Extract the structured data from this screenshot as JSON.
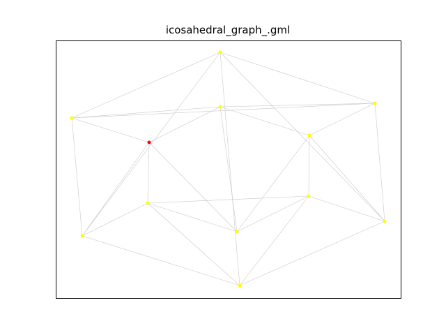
{
  "title": "icosahedral_graph_.gml",
  "colors": {
    "edge": "#c8c8c8",
    "node_default": "#ffff00",
    "node_highlight": "#ff0000",
    "frame": "#000000"
  },
  "graph": {
    "nodes": [
      {
        "id": 0,
        "label": "",
        "highlight": false
      },
      {
        "id": 1,
        "label": "",
        "highlight": false
      },
      {
        "id": 2,
        "label": "",
        "highlight": false
      },
      {
        "id": 3,
        "label": "",
        "highlight": false
      },
      {
        "id": 4,
        "label": "",
        "highlight": false
      },
      {
        "id": 5,
        "label": "",
        "highlight": false
      },
      {
        "id": 6,
        "label": "",
        "highlight": false
      },
      {
        "id": 7,
        "label": "",
        "highlight": true
      },
      {
        "id": 8,
        "label": "",
        "highlight": false
      },
      {
        "id": 9,
        "label": "",
        "highlight": false
      },
      {
        "id": 10,
        "label": "",
        "highlight": false
      },
      {
        "id": 11,
        "label": "",
        "highlight": false
      }
    ],
    "edges": [
      [
        0,
        1
      ],
      [
        0,
        2
      ],
      [
        0,
        3
      ],
      [
        0,
        4
      ],
      [
        0,
        5
      ],
      [
        1,
        2
      ],
      [
        1,
        3
      ],
      [
        1,
        6
      ],
      [
        1,
        7
      ],
      [
        2,
        4
      ],
      [
        2,
        6
      ],
      [
        2,
        8
      ],
      [
        3,
        5
      ],
      [
        3,
        7
      ],
      [
        3,
        9
      ],
      [
        4,
        5
      ],
      [
        4,
        8
      ],
      [
        4,
        10
      ],
      [
        5,
        9
      ],
      [
        5,
        10
      ],
      [
        6,
        7
      ],
      [
        6,
        8
      ],
      [
        6,
        11
      ],
      [
        7,
        9
      ],
      [
        7,
        11
      ],
      [
        8,
        10
      ],
      [
        8,
        11
      ],
      [
        9,
        10
      ],
      [
        9,
        11
      ],
      [
        10,
        11
      ]
    ]
  }
}
